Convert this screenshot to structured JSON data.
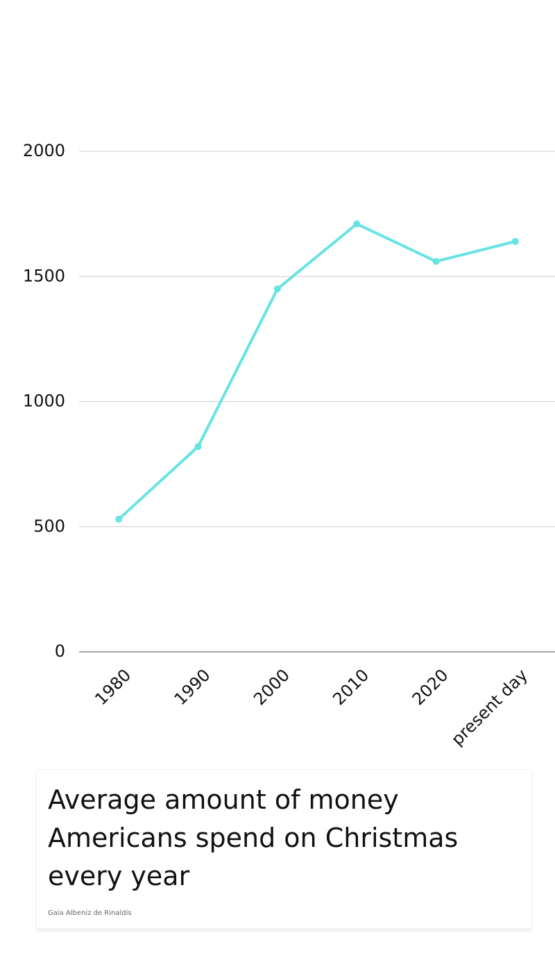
{
  "chart_data": {
    "type": "line",
    "title": "Average amount of money Americans spend on Christmas every year",
    "caption": "Gaia Albeniz de Rinaldis",
    "categories": [
      "1980",
      "1990",
      "2000",
      "2010",
      "2020",
      "present day"
    ],
    "values": [
      530,
      820,
      1450,
      1710,
      1560,
      1640
    ],
    "color": "#66e3e3",
    "ylim": [
      0,
      2000
    ],
    "yticks": [
      0,
      500,
      1000,
      1500,
      2000
    ],
    "grid": true
  }
}
